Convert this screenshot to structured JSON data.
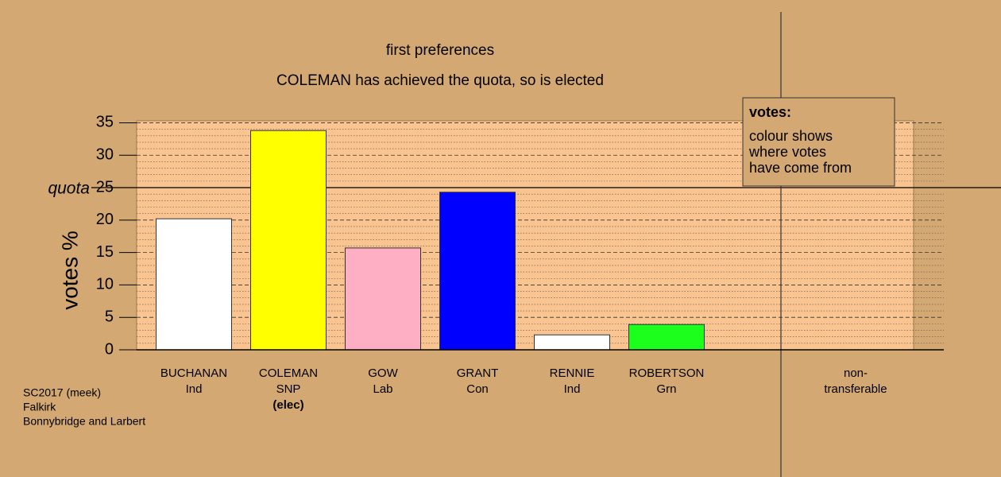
{
  "chart_data": {
    "type": "bar",
    "title": "first preferences",
    "subtitle": "COLEMAN has achieved the quota, so is elected",
    "y_label": "votes %",
    "categories": [
      "BUCHANAN",
      "COLEMAN",
      "GOW",
      "GRANT",
      "RENNIE",
      "ROBERTSON",
      "non-"
    ],
    "parties": [
      "Ind",
      "SNP",
      "Lab",
      "Con",
      "Ind",
      "Grn",
      "transferable"
    ],
    "status": [
      null,
      "(elec)",
      null,
      null,
      null,
      null,
      null
    ],
    "values": [
      20.2,
      33.8,
      15.7,
      24.3,
      2.3,
      3.9,
      null
    ],
    "colors": [
      "#ffffff",
      "#ffff00",
      "#ffafc4",
      "#0000ff",
      "#ffffff",
      "#1cff1c",
      null
    ],
    "ylim": [
      0,
      35.3
    ],
    "yticks": [
      0,
      5,
      10,
      15,
      20,
      25,
      30,
      35
    ],
    "yminor": [
      1,
      2,
      3,
      4,
      6,
      7,
      8,
      9,
      11,
      12,
      13,
      14,
      16,
      17,
      18,
      19,
      21,
      22,
      23,
      24,
      26,
      27,
      28,
      29,
      31,
      32,
      33,
      34
    ],
    "quota": {
      "value": 25,
      "label": "quota"
    },
    "grid": true,
    "legend": {
      "title": "votes:",
      "lines": [
        "colour shows",
        "where votes",
        "have come from"
      ]
    },
    "footer": [
      "SC2017 (meek)",
      "Falkirk",
      "Bonnybridge and Larbert"
    ]
  }
}
